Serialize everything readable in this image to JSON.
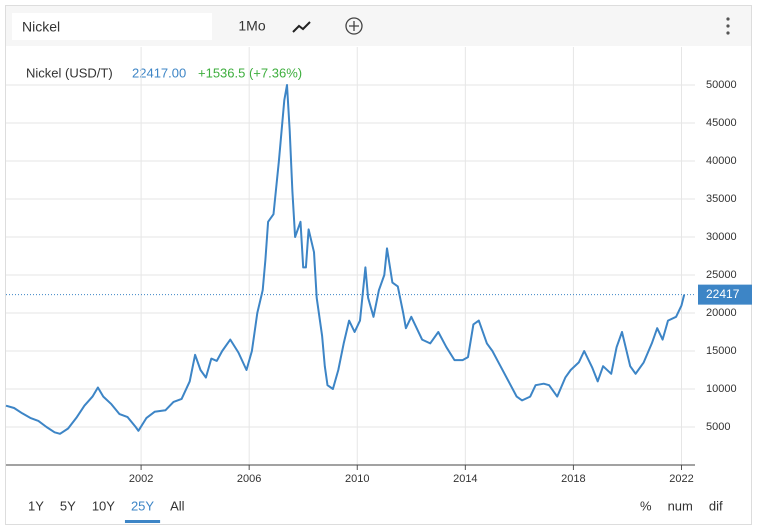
{
  "toolbar": {
    "symbol": "Nickel",
    "interval": "1Mo"
  },
  "legend": {
    "name": "Nickel (USD/T)",
    "price": "22417.00",
    "change": "+1536.5 (+7.36%)"
  },
  "ranges": [
    "1Y",
    "5Y",
    "10Y",
    "25Y",
    "All"
  ],
  "active_range": "25Y",
  "modes": [
    "%",
    "num",
    "dif"
  ],
  "chart_data": {
    "type": "line",
    "xlim": [
      1997,
      2022.5
    ],
    "xticks": [
      2002,
      2006,
      2010,
      2014,
      2018,
      2022
    ],
    "ylim": [
      0,
      55000
    ],
    "yticks": [
      5000,
      10000,
      15000,
      20000,
      25000,
      30000,
      35000,
      40000,
      45000,
      50000
    ],
    "grid": true,
    "x": [
      1997.0,
      1997.3,
      1997.6,
      1997.9,
      1998.2,
      1998.5,
      1998.8,
      1999.0,
      1999.3,
      1999.6,
      1999.9,
      2000.2,
      2000.4,
      2000.6,
      2000.9,
      2001.2,
      2001.5,
      2001.8,
      2001.9,
      2002.2,
      2002.5,
      2002.9,
      2003.2,
      2003.5,
      2003.8,
      2004.0,
      2004.2,
      2004.4,
      2004.6,
      2004.8,
      2005.0,
      2005.3,
      2005.6,
      2005.9,
      2006.1,
      2006.3,
      2006.5,
      2006.6,
      2006.7,
      2006.9,
      2007.1,
      2007.3,
      2007.4,
      2007.5,
      2007.6,
      2007.7,
      2007.9,
      2008.0,
      2008.1,
      2008.2,
      2008.4,
      2008.5,
      2008.7,
      2008.8,
      2008.9,
      2009.1,
      2009.3,
      2009.5,
      2009.7,
      2009.9,
      2010.1,
      2010.3,
      2010.4,
      2010.6,
      2010.8,
      2011.0,
      2011.1,
      2011.3,
      2011.5,
      2011.7,
      2011.8,
      2012.0,
      2012.2,
      2012.4,
      2012.7,
      2013.0,
      2013.3,
      2013.6,
      2013.9,
      2014.1,
      2014.3,
      2014.5,
      2014.8,
      2015.0,
      2015.3,
      2015.6,
      2015.9,
      2016.1,
      2016.4,
      2016.6,
      2016.9,
      2017.1,
      2017.4,
      2017.7,
      2017.9,
      2018.2,
      2018.4,
      2018.7,
      2018.9,
      2019.1,
      2019.4,
      2019.6,
      2019.8,
      2020.1,
      2020.3,
      2020.6,
      2020.9,
      2021.1,
      2021.3,
      2021.5,
      2021.8,
      2022.0,
      2022.1
    ],
    "series": [
      {
        "name": "Nickel (USD/T)",
        "color": "#3d85c6",
        "values": [
          7800,
          7500,
          6800,
          6200,
          5800,
          5000,
          4300,
          4100,
          4800,
          6200,
          7800,
          9000,
          10200,
          9000,
          8000,
          6700,
          6300,
          5000,
          4500,
          6200,
          7000,
          7200,
          8300,
          8700,
          11000,
          14500,
          12500,
          11500,
          14000,
          13700,
          15000,
          16500,
          14800,
          12500,
          15000,
          20000,
          23000,
          27000,
          32000,
          33000,
          40000,
          48000,
          50000,
          44000,
          36000,
          30000,
          32000,
          26000,
          26000,
          31000,
          28000,
          22000,
          17000,
          13000,
          10500,
          10000,
          12500,
          16000,
          19000,
          17500,
          19000,
          26000,
          22000,
          19500,
          23000,
          25000,
          28500,
          24000,
          23500,
          20000,
          18000,
          19500,
          18000,
          16500,
          16000,
          17500,
          15500,
          13800,
          13800,
          14200,
          18500,
          19000,
          16000,
          15000,
          13000,
          11000,
          9000,
          8500,
          9000,
          10500,
          10700,
          10500,
          9000,
          11500,
          12500,
          13500,
          15000,
          12800,
          11000,
          13000,
          12000,
          15500,
          17500,
          13000,
          12000,
          13500,
          16000,
          18000,
          16500,
          19000,
          19500,
          21000,
          22417
        ]
      }
    ]
  }
}
